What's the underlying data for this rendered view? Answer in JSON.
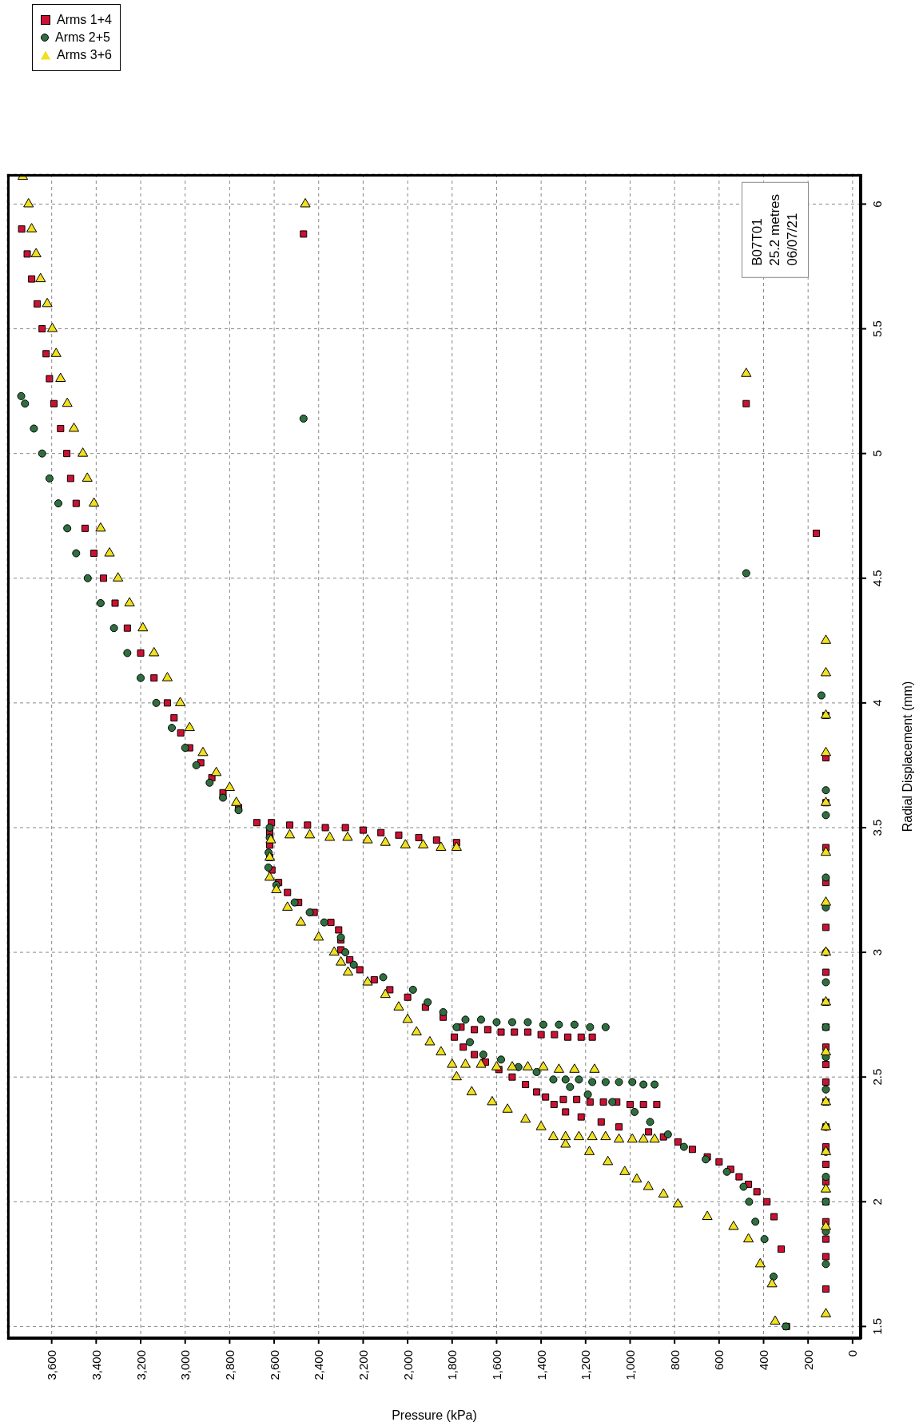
{
  "chart_data": {
    "type": "scatter",
    "xlabel": "Pressure (kPa)",
    "ylabel": "Radial Displacement (mm)",
    "xlim": [
      3800,
      -40
    ],
    "xticks": [
      0,
      200,
      400,
      600,
      800,
      {
        "value": 1000,
        "label": "1,000"
      },
      {
        "value": 1200,
        "label": "1,200"
      },
      {
        "value": 1400,
        "label": "1,400"
      },
      {
        "value": 1600,
        "label": "1,600"
      },
      {
        "value": 1800,
        "label": "1,800"
      },
      {
        "value": 2000,
        "label": "2,000"
      },
      {
        "value": 2200,
        "label": "2,200"
      },
      {
        "value": 2400,
        "label": "2,400"
      },
      {
        "value": 2600,
        "label": "2,600"
      },
      {
        "value": 2800,
        "label": "2,800"
      },
      {
        "value": 3000,
        "label": "3,000"
      },
      {
        "value": 3200,
        "label": "3,200"
      },
      {
        "value": 3400,
        "label": "3,400"
      },
      {
        "value": 3600,
        "label": "3,600"
      }
    ],
    "ylim": [
      1.45,
      6.12
    ],
    "yticks": [
      1.5,
      2,
      2.5,
      3,
      3.5,
      4,
      4.5,
      5,
      5.5,
      6
    ],
    "grid": true,
    "legend": "top left",
    "annotations": [
      "B07T01",
      "25.2 metres",
      "06/07/21"
    ],
    "series": [
      {
        "name": "Arms 1+4",
        "color": "#cc1133",
        "marker": "square",
        "values": [
          1.5,
          1.81,
          1.94,
          2.0,
          2.04,
          2.07,
          2.1,
          2.13,
          2.16,
          2.18,
          2.21,
          2.24,
          2.26,
          2.28,
          2.3,
          2.32,
          2.34,
          2.36,
          2.39,
          2.41,
          2.41,
          2.4,
          2.4,
          2.4,
          2.39,
          2.39,
          2.39,
          2.42,
          2.44,
          2.47,
          2.5,
          2.53,
          2.56,
          2.59,
          2.62,
          2.66,
          2.7,
          2.69,
          2.69,
          2.68,
          2.68,
          2.68,
          2.67,
          2.67,
          2.66,
          2.66,
          2.66,
          2.74,
          2.78,
          2.82,
          2.85,
          2.89,
          2.93,
          2.97,
          3.01,
          3.05,
          3.09,
          3.12,
          3.16,
          3.2,
          3.24,
          3.28,
          3.33,
          3.38,
          3.43,
          3.48,
          3.52,
          3.51,
          3.51,
          3.5,
          3.5,
          3.49,
          3.48,
          3.47,
          3.46,
          3.45,
          3.44,
          3.52,
          3.58,
          3.64,
          3.7,
          3.76,
          3.82,
          3.88,
          3.94,
          4.0,
          4.1,
          4.2,
          4.3,
          4.4,
          4.5,
          4.6,
          4.7,
          4.8,
          4.9,
          5.0,
          5.1,
          5.2,
          5.3,
          5.4,
          5.5,
          5.6,
          5.7,
          5.8,
          5.9,
          5.88,
          5.2,
          4.68,
          1.65,
          1.78,
          1.85,
          1.92,
          2.0,
          2.08,
          2.15,
          2.22,
          2.3,
          2.4,
          2.48,
          2.55,
          2.62,
          2.7,
          2.8,
          2.92,
          3.1,
          3.28,
          3.42,
          3.6,
          3.78,
          3.95
        ],
        "x": [
          297,
          321,
          353,
          385,
          430,
          468,
          510,
          548,
          600,
          653,
          720,
          785,
          850,
          917,
          1050,
          1130,
          1220,
          1290,
          1342,
          1300,
          1240,
          1180,
          1120,
          1060,
          1000,
          940,
          880,
          1380,
          1420,
          1470,
          1530,
          1590,
          1650,
          1700,
          1750,
          1790,
          1760,
          1700,
          1640,
          1580,
          1520,
          1460,
          1400,
          1340,
          1280,
          1220,
          1170,
          1840,
          1920,
          2000,
          2080,
          2150,
          2215,
          2260,
          2300,
          2300,
          2310,
          2345,
          2420,
          2490,
          2540,
          2580,
          2610,
          2620,
          2620,
          2620,
          2612,
          2530,
          2450,
          2370,
          2280,
          2200,
          2120,
          2040,
          1950,
          1870,
          1780,
          2678,
          2760,
          2830,
          2880,
          2930,
          2980,
          3020,
          3050,
          3080,
          3140,
          3200,
          3260,
          3315,
          3367,
          3410,
          3450,
          3490,
          3515,
          3532,
          3560,
          3590,
          3610,
          3625,
          3643,
          3665,
          3690,
          3710,
          3735,
          2468,
          478,
          163,
          120,
          120,
          120,
          120,
          120,
          120,
          120,
          120,
          120,
          120,
          120,
          120,
          120,
          120,
          120,
          120,
          120,
          120,
          120,
          120,
          120,
          120
        ]
      },
      {
        "name": "Arms 2+5",
        "color": "#2f6f3f",
        "marker": "circle",
        "values": [
          1.5,
          1.7,
          1.85,
          1.92,
          2.0,
          2.06,
          2.12,
          2.17,
          2.22,
          2.27,
          2.32,
          2.36,
          2.4,
          2.43,
          2.46,
          2.49,
          2.49,
          2.49,
          2.48,
          2.48,
          2.48,
          2.48,
          2.47,
          2.47,
          2.52,
          2.54,
          2.57,
          2.59,
          2.64,
          2.7,
          2.73,
          2.73,
          2.72,
          2.72,
          2.72,
          2.71,
          2.71,
          2.71,
          2.7,
          2.7,
          2.76,
          2.8,
          2.85,
          2.9,
          2.95,
          3.0,
          3.06,
          3.12,
          3.16,
          3.2,
          3.27,
          3.34,
          3.4,
          3.46,
          3.5,
          3.57,
          3.62,
          3.68,
          3.75,
          3.82,
          3.9,
          4.0,
          4.1,
          4.2,
          4.3,
          4.4,
          4.5,
          4.6,
          4.7,
          4.8,
          4.9,
          5.0,
          5.1,
          5.2,
          5.23,
          5.14,
          4.52,
          1.75,
          1.88,
          2.0,
          2.1,
          2.2,
          2.3,
          2.45,
          2.58,
          2.7,
          2.88,
          3.0,
          3.18,
          3.3,
          3.55,
          3.65,
          4.03
        ],
        "x": [
          300,
          355,
          396,
          437,
          465,
          490,
          565,
          660,
          758,
          830,
          910,
          980,
          1080,
          1190,
          1270,
          1345,
          1290,
          1230,
          1170,
          1110,
          1050,
          990,
          940,
          890,
          1420,
          1502,
          1580,
          1660,
          1720,
          1780,
          1740,
          1670,
          1600,
          1530,
          1460,
          1390,
          1320,
          1250,
          1180,
          1110,
          1840,
          1910,
          1976,
          2110,
          2242,
          2280,
          2300,
          2375,
          2440,
          2508,
          2590,
          2626,
          2625,
          2620,
          2620,
          2760,
          2830,
          2890,
          2950,
          3000,
          3060,
          3130,
          3200,
          3260,
          3320,
          3380,
          3438,
          3490,
          3530,
          3570,
          3610,
          3643,
          3680,
          3720,
          3737,
          2468,
          478,
          120,
          120,
          120,
          120,
          120,
          120,
          120,
          120,
          120,
          120,
          120,
          120,
          120,
          120,
          120,
          140
        ]
      },
      {
        "name": "Arms 3+6",
        "color": "#f0e020",
        "marker": "triangle",
        "values": [
          1.52,
          1.67,
          1.75,
          1.85,
          1.9,
          1.94,
          1.99,
          2.03,
          2.06,
          2.09,
          2.12,
          2.16,
          2.2,
          2.23,
          2.26,
          2.26,
          2.26,
          2.26,
          2.26,
          2.25,
          2.25,
          2.25,
          2.25,
          2.3,
          2.33,
          2.37,
          2.4,
          2.44,
          2.5,
          2.55,
          2.55,
          2.55,
          2.54,
          2.54,
          2.54,
          2.54,
          2.53,
          2.53,
          2.53,
          2.6,
          2.64,
          2.68,
          2.73,
          2.78,
          2.83,
          2.88,
          2.92,
          2.96,
          3.0,
          3.06,
          3.12,
          3.18,
          3.25,
          3.3,
          3.38,
          3.45,
          3.47,
          3.47,
          3.46,
          3.46,
          3.45,
          3.44,
          3.43,
          3.43,
          3.42,
          3.42,
          3.6,
          3.66,
          3.72,
          3.8,
          3.9,
          4.0,
          4.1,
          4.2,
          4.3,
          4.4,
          4.5,
          4.6,
          4.7,
          4.8,
          4.9,
          5.0,
          5.1,
          5.2,
          5.3,
          5.4,
          5.5,
          5.6,
          5.7,
          5.8,
          5.9,
          6.0,
          6.11,
          6.0,
          5.32,
          1.55,
          1.9,
          2.05,
          2.2,
          2.3,
          2.4,
          2.6,
          2.8,
          3.0,
          3.2,
          3.4,
          3.6,
          3.8,
          3.95,
          4.12,
          4.25
        ],
        "x": [
          348,
          362,
          415,
          468,
          535,
          653,
          785,
          850,
          918,
          970,
          1024,
          1100,
          1183,
          1290,
          1345,
          1290,
          1230,
          1170,
          1110,
          1050,
          990,
          940,
          890,
          1400,
          1470,
          1551,
          1620,
          1712,
          1780,
          1800,
          1740,
          1670,
          1600,
          1530,
          1460,
          1390,
          1320,
          1250,
          1160,
          1850,
          1900,
          1960,
          2000,
          2040,
          2100,
          2180,
          2268,
          2300,
          2330,
          2400,
          2480,
          2540,
          2590,
          2620,
          2620,
          2615,
          2530,
          2440,
          2350,
          2270,
          2180,
          2100,
          2010,
          1930,
          1850,
          1780,
          2770,
          2800,
          2860,
          2920,
          2980,
          3022,
          3080,
          3140,
          3190,
          3250,
          3302,
          3340,
          3380,
          3410,
          3440,
          3460,
          3500,
          3530,
          3560,
          3580,
          3597,
          3620,
          3650,
          3670,
          3690,
          3704,
          3730,
          2460,
          478,
          120,
          120,
          120,
          120,
          120,
          120,
          120,
          120,
          120,
          120,
          120,
          120,
          120,
          120,
          120,
          120
        ]
      }
    ]
  }
}
